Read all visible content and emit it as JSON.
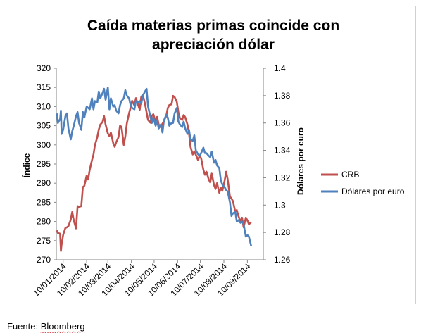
{
  "source": {
    "prefix": "Fuente: ",
    "name": "Bloomberg"
  },
  "chart_data": {
    "type": "line",
    "title_line1": "Caída materias primas coincide con",
    "title_line2": "apreciación dólar",
    "ylabel_left": "Índice",
    "ylabel_right": "Dólares por euro",
    "left_axis": {
      "min": 270,
      "max": 320,
      "ticks": [
        "270",
        "275",
        "280",
        "285",
        "290",
        "295",
        "300",
        "305",
        "310",
        "315",
        "320"
      ]
    },
    "right_axis": {
      "min": 1.26,
      "max": 1.4,
      "ticks": [
        "1.26",
        "1.28",
        "1.3",
        "1.32",
        "1.34",
        "1.36",
        "1.38",
        "1.4"
      ]
    },
    "x_ticks": [
      "10/01/2014",
      "10/02/2014",
      "10/03/2014",
      "10/04/2014",
      "10/05/2014",
      "10/06/2014",
      "10/07/2014",
      "10/08/2014",
      "10/09/2014"
    ],
    "x_range": [
      "2014-01-01",
      "2014-10-01"
    ],
    "grid": false,
    "legend_position": "right",
    "series": [
      {
        "name": "CRB",
        "axis": "left",
        "color": "#C0504D",
        "points": [
          [
            "2014-01-02",
            277.7
          ],
          [
            "2014-01-03",
            277.0
          ],
          [
            "2014-01-06",
            276.8
          ],
          [
            "2014-01-07",
            272.3
          ],
          [
            "2014-01-08",
            274.0
          ],
          [
            "2014-01-10",
            276.5
          ],
          [
            "2014-01-13",
            278.3
          ],
          [
            "2014-01-15",
            278.5
          ],
          [
            "2014-01-17",
            278.8
          ],
          [
            "2014-01-20",
            280.5
          ],
          [
            "2014-01-22",
            282.5
          ],
          [
            "2014-01-24",
            280.3
          ],
          [
            "2014-01-27",
            278.2
          ],
          [
            "2014-01-29",
            284.0
          ],
          [
            "2014-01-31",
            283.8
          ],
          [
            "2014-02-03",
            284.0
          ],
          [
            "2014-02-05",
            289.0
          ],
          [
            "2014-02-07",
            289.3
          ],
          [
            "2014-02-10",
            292.0
          ],
          [
            "2014-02-12",
            291.0
          ],
          [
            "2014-02-14",
            293.5
          ],
          [
            "2014-02-17",
            296.0
          ],
          [
            "2014-02-19",
            297.5
          ],
          [
            "2014-02-21",
            300.0
          ],
          [
            "2014-02-24",
            302.0
          ],
          [
            "2014-02-26",
            304.0
          ],
          [
            "2014-02-28",
            305.3
          ],
          [
            "2014-03-03",
            306.0
          ],
          [
            "2014-03-05",
            307.5
          ],
          [
            "2014-03-07",
            305.3
          ],
          [
            "2014-03-10",
            303.0
          ],
          [
            "2014-03-12",
            302.3
          ],
          [
            "2014-03-14",
            303.2
          ],
          [
            "2014-03-17",
            300.5
          ],
          [
            "2014-03-19",
            299.5
          ],
          [
            "2014-03-21",
            300.7
          ],
          [
            "2014-03-24",
            302.0
          ],
          [
            "2014-03-26",
            305.0
          ],
          [
            "2014-03-28",
            304.7
          ],
          [
            "2014-03-31",
            300.0
          ],
          [
            "2014-04-02",
            302.2
          ],
          [
            "2014-04-04",
            305.6
          ],
          [
            "2014-04-07",
            308.3
          ],
          [
            "2014-04-09",
            309.7
          ],
          [
            "2014-04-11",
            311.5
          ],
          [
            "2014-04-14",
            310.3
          ],
          [
            "2014-04-16",
            312.2
          ],
          [
            "2014-04-18",
            311.0
          ],
          [
            "2014-04-21",
            309.2
          ],
          [
            "2014-04-23",
            312.5
          ],
          [
            "2014-04-25",
            313.1
          ],
          [
            "2014-04-28",
            310.7
          ],
          [
            "2014-04-30",
            308.5
          ],
          [
            "2014-05-02",
            306.5
          ],
          [
            "2014-05-05",
            305.8
          ],
          [
            "2014-05-07",
            307.6
          ],
          [
            "2014-05-09",
            308.0
          ],
          [
            "2014-05-12",
            306.0
          ],
          [
            "2014-05-14",
            307.3
          ],
          [
            "2014-05-16",
            305.3
          ],
          [
            "2014-05-19",
            304.6
          ],
          [
            "2014-05-21",
            305.5
          ],
          [
            "2014-05-23",
            306.3
          ],
          [
            "2014-05-26",
            307.6
          ],
          [
            "2014-05-28",
            309.6
          ],
          [
            "2014-05-30",
            310.4
          ],
          [
            "2014-06-02",
            310.6
          ],
          [
            "2014-06-04",
            312.8
          ],
          [
            "2014-06-06",
            312.5
          ],
          [
            "2014-06-09",
            311.2
          ],
          [
            "2014-06-11",
            308.5
          ],
          [
            "2014-06-13",
            307.0
          ],
          [
            "2014-06-16",
            306.5
          ],
          [
            "2014-06-18",
            307.8
          ],
          [
            "2014-06-20",
            307.2
          ],
          [
            "2014-06-23",
            305.3
          ],
          [
            "2014-06-25",
            303.0
          ],
          [
            "2014-06-27",
            299.5
          ],
          [
            "2014-06-30",
            297.5
          ],
          [
            "2014-07-02",
            298.3
          ],
          [
            "2014-07-04",
            297.4
          ],
          [
            "2014-07-07",
            296.0
          ],
          [
            "2014-07-09",
            297.2
          ],
          [
            "2014-07-11",
            296.5
          ],
          [
            "2014-07-14",
            293.5
          ],
          [
            "2014-07-16",
            292.2
          ],
          [
            "2014-07-18",
            293.0
          ],
          [
            "2014-07-21",
            291.0
          ],
          [
            "2014-07-23",
            290.2
          ],
          [
            "2014-07-25",
            292.5
          ],
          [
            "2014-07-28",
            289.5
          ],
          [
            "2014-07-30",
            288.5
          ],
          [
            "2014-08-01",
            290.0
          ],
          [
            "2014-08-04",
            287.5
          ],
          [
            "2014-08-06",
            288.8
          ],
          [
            "2014-08-08",
            288.0
          ],
          [
            "2014-08-11",
            290.7
          ],
          [
            "2014-08-13",
            293.0
          ],
          [
            "2014-08-15",
            291.0
          ],
          [
            "2014-08-18",
            286.5
          ],
          [
            "2014-08-20",
            286.0
          ],
          [
            "2014-08-22",
            285.3
          ],
          [
            "2014-08-25",
            282.5
          ],
          [
            "2014-08-27",
            283.0
          ],
          [
            "2014-08-29",
            281.5
          ],
          [
            "2014-09-01",
            280.0
          ],
          [
            "2014-09-03",
            281.0
          ],
          [
            "2014-09-05",
            278.5
          ],
          [
            "2014-09-08",
            281.0
          ],
          [
            "2014-09-10",
            280.3
          ],
          [
            "2014-09-12",
            279.3
          ],
          [
            "2014-09-15",
            279.8
          ]
        ]
      },
      {
        "name": "Dólares por euro",
        "axis": "right",
        "color": "#4F81BD",
        "points": [
          [
            "2014-01-02",
            1.367
          ],
          [
            "2014-01-03",
            1.36
          ],
          [
            "2014-01-06",
            1.363
          ],
          [
            "2014-01-07",
            1.369
          ],
          [
            "2014-01-08",
            1.352
          ],
          [
            "2014-01-10",
            1.355
          ],
          [
            "2014-01-13",
            1.365
          ],
          [
            "2014-01-15",
            1.367
          ],
          [
            "2014-01-17",
            1.356
          ],
          [
            "2014-01-20",
            1.348
          ],
          [
            "2014-01-22",
            1.354
          ],
          [
            "2014-01-24",
            1.358
          ],
          [
            "2014-01-27",
            1.365
          ],
          [
            "2014-01-29",
            1.368
          ],
          [
            "2014-01-31",
            1.36
          ],
          [
            "2014-02-03",
            1.355
          ],
          [
            "2014-02-05",
            1.368
          ],
          [
            "2014-02-07",
            1.364
          ],
          [
            "2014-02-10",
            1.372
          ],
          [
            "2014-02-12",
            1.371
          ],
          [
            "2014-02-14",
            1.37
          ],
          [
            "2014-02-17",
            1.378
          ],
          [
            "2014-02-19",
            1.37
          ],
          [
            "2014-02-21",
            1.376
          ],
          [
            "2014-02-24",
            1.375
          ],
          [
            "2014-02-26",
            1.383
          ],
          [
            "2014-02-28",
            1.378
          ],
          [
            "2014-03-03",
            1.382
          ],
          [
            "2014-03-05",
            1.385
          ],
          [
            "2014-03-07",
            1.377
          ],
          [
            "2014-03-10",
            1.386
          ],
          [
            "2014-03-12",
            1.37
          ],
          [
            "2014-03-14",
            1.378
          ],
          [
            "2014-03-17",
            1.372
          ],
          [
            "2014-03-19",
            1.373
          ],
          [
            "2014-03-21",
            1.369
          ],
          [
            "2014-03-24",
            1.367
          ],
          [
            "2014-03-26",
            1.373
          ],
          [
            "2014-03-28",
            1.376
          ],
          [
            "2014-03-31",
            1.378
          ],
          [
            "2014-04-02",
            1.384
          ],
          [
            "2014-04-04",
            1.38
          ],
          [
            "2014-04-07",
            1.378
          ],
          [
            "2014-04-09",
            1.373
          ],
          [
            "2014-04-11",
            1.371
          ],
          [
            "2014-04-14",
            1.37
          ],
          [
            "2014-04-16",
            1.376
          ],
          [
            "2014-04-18",
            1.375
          ],
          [
            "2014-04-21",
            1.376
          ],
          [
            "2014-04-23",
            1.374
          ],
          [
            "2014-04-25",
            1.38
          ],
          [
            "2014-04-28",
            1.383
          ],
          [
            "2014-04-30",
            1.385
          ],
          [
            "2014-05-02",
            1.372
          ],
          [
            "2014-05-05",
            1.365
          ],
          [
            "2014-05-07",
            1.36
          ],
          [
            "2014-05-09",
            1.364
          ],
          [
            "2014-05-12",
            1.358
          ],
          [
            "2014-05-14",
            1.362
          ],
          [
            "2014-05-16",
            1.356
          ],
          [
            "2014-05-19",
            1.359
          ],
          [
            "2014-05-21",
            1.353
          ],
          [
            "2014-05-23",
            1.362
          ],
          [
            "2014-05-26",
            1.366
          ],
          [
            "2014-05-28",
            1.364
          ],
          [
            "2014-05-30",
            1.358
          ],
          [
            "2014-06-02",
            1.36
          ],
          [
            "2014-06-04",
            1.36
          ],
          [
            "2014-06-06",
            1.367
          ],
          [
            "2014-06-09",
            1.371
          ],
          [
            "2014-06-11",
            1.361
          ],
          [
            "2014-06-13",
            1.359
          ],
          [
            "2014-06-16",
            1.357
          ],
          [
            "2014-06-18",
            1.361
          ],
          [
            "2014-06-20",
            1.356
          ],
          [
            "2014-06-23",
            1.352
          ],
          [
            "2014-06-25",
            1.355
          ],
          [
            "2014-06-27",
            1.348
          ],
          [
            "2014-06-30",
            1.347
          ],
          [
            "2014-07-02",
            1.351
          ],
          [
            "2014-07-04",
            1.34
          ],
          [
            "2014-07-07",
            1.337
          ],
          [
            "2014-07-09",
            1.336
          ],
          [
            "2014-07-11",
            1.338
          ],
          [
            "2014-07-14",
            1.342
          ],
          [
            "2014-07-16",
            1.338
          ],
          [
            "2014-07-18",
            1.338
          ],
          [
            "2014-07-21",
            1.336
          ],
          [
            "2014-07-23",
            1.335
          ],
          [
            "2014-07-25",
            1.339
          ],
          [
            "2014-07-28",
            1.331
          ],
          [
            "2014-07-30",
            1.333
          ],
          [
            "2014-08-01",
            1.329
          ],
          [
            "2014-08-04",
            1.327
          ],
          [
            "2014-08-06",
            1.318
          ],
          [
            "2014-08-08",
            1.315
          ],
          [
            "2014-08-11",
            1.313
          ],
          [
            "2014-08-13",
            1.311
          ],
          [
            "2014-08-15",
            1.31
          ],
          [
            "2014-08-18",
            1.302
          ],
          [
            "2014-08-20",
            1.292
          ],
          [
            "2014-08-22",
            1.294
          ],
          [
            "2014-08-25",
            1.295
          ],
          [
            "2014-08-27",
            1.288
          ],
          [
            "2014-08-29",
            1.289
          ],
          [
            "2014-09-01",
            1.287
          ],
          [
            "2014-09-03",
            1.288
          ],
          [
            "2014-09-05",
            1.286
          ],
          [
            "2014-09-08",
            1.277
          ],
          [
            "2014-09-10",
            1.278
          ],
          [
            "2014-09-12",
            1.277
          ],
          [
            "2014-09-15",
            1.27
          ]
        ]
      }
    ]
  }
}
